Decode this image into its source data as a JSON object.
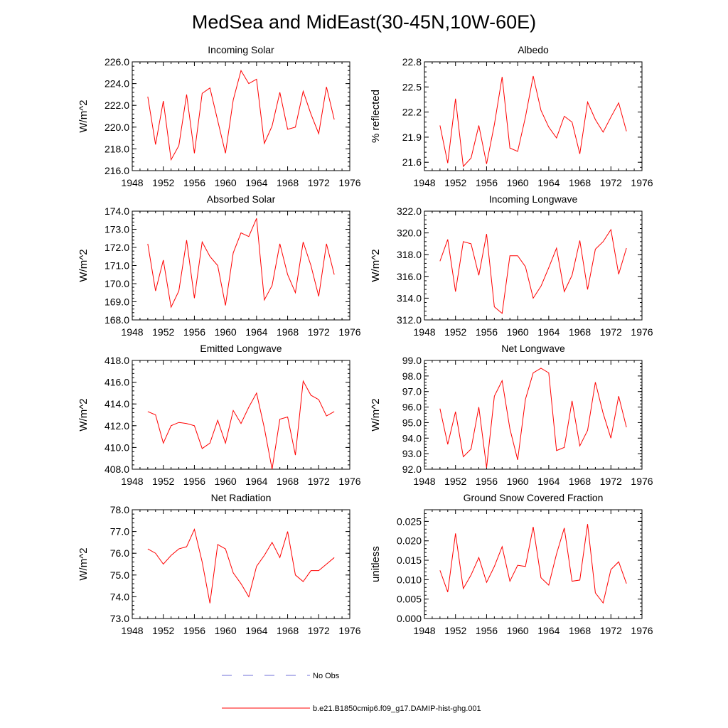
{
  "figure": {
    "title": "MedSea and MidEast(30-45N,10W-60E)"
  },
  "colors": {
    "series": "#ff0000",
    "no_obs": "#6f6fd8",
    "axes": "#000000"
  },
  "legend": {
    "items": [
      {
        "label": "No Obs",
        "style": "dashed",
        "color": "#6f6fd8"
      },
      {
        "label": "b.e21.B1850cmip6.f09_g17.DAMIP-hist-ghg.001",
        "style": "solid",
        "color": "#ff0000"
      }
    ]
  },
  "chart_data": [
    {
      "type": "line",
      "title": "Incoming Solar",
      "ylabel": "W/m^2",
      "xlim": [
        1948,
        1976
      ],
      "ylim": [
        216,
        226
      ],
      "xticks": [
        "1948",
        "1952",
        "1956",
        "1960",
        "1964",
        "1968",
        "1972",
        "1976"
      ],
      "yticks": [
        "216.0",
        "218.0",
        "220.0",
        "222.0",
        "224.0",
        "226.0"
      ],
      "x": [
        1950,
        1951,
        1952,
        1953,
        1954,
        1955,
        1956,
        1957,
        1958,
        1959,
        1960,
        1961,
        1962,
        1963,
        1964,
        1965,
        1966,
        1967,
        1968,
        1969,
        1970,
        1971,
        1972,
        1973,
        1974
      ],
      "series": [
        {
          "name": "b.e21.B1850cmip6.f09_g17.DAMIP-hist-ghg.001",
          "values": [
            222.8,
            218.4,
            222.4,
            217.0,
            218.3,
            223.0,
            217.6,
            223.1,
            223.6,
            220.6,
            217.6,
            222.5,
            225.2,
            224.0,
            224.4,
            218.5,
            220.1,
            223.2,
            219.8,
            220.0,
            223.3,
            221.2,
            219.4,
            223.7,
            220.7
          ]
        }
      ]
    },
    {
      "type": "line",
      "title": "Albedo",
      "ylabel": "% reflected",
      "xlim": [
        1948,
        1976
      ],
      "ylim": [
        21.5,
        22.8
      ],
      "xticks": [
        "1948",
        "1952",
        "1956",
        "1960",
        "1964",
        "1968",
        "1972",
        "1976"
      ],
      "yticks": [
        "21.6",
        "21.9",
        "22.2",
        "22.5",
        "22.8"
      ],
      "x": [
        1950,
        1951,
        1952,
        1953,
        1954,
        1955,
        1956,
        1957,
        1958,
        1959,
        1960,
        1961,
        1962,
        1963,
        1964,
        1965,
        1966,
        1967,
        1968,
        1969,
        1970,
        1971,
        1972,
        1973,
        1974
      ],
      "series": [
        {
          "name": "b.e21.B1850cmip6.f09_g17.DAMIP-hist-ghg.001",
          "values": [
            22.04,
            21.59,
            22.36,
            21.55,
            21.65,
            22.04,
            21.58,
            22.05,
            22.62,
            21.77,
            21.73,
            22.14,
            22.63,
            22.22,
            22.02,
            21.89,
            22.15,
            22.08,
            21.7,
            22.32,
            22.11,
            21.96,
            22.14,
            22.31,
            21.97
          ]
        }
      ]
    },
    {
      "type": "line",
      "title": "Absorbed Solar",
      "ylabel": "W/m^2",
      "xlim": [
        1948,
        1976
      ],
      "ylim": [
        168,
        174
      ],
      "xticks": [
        "1948",
        "1952",
        "1956",
        "1960",
        "1964",
        "1968",
        "1972",
        "1976"
      ],
      "yticks": [
        "168.0",
        "169.0",
        "170.0",
        "171.0",
        "172.0",
        "173.0",
        "174.0"
      ],
      "x": [
        1950,
        1951,
        1952,
        1953,
        1954,
        1955,
        1956,
        1957,
        1958,
        1959,
        1960,
        1961,
        1962,
        1963,
        1964,
        1965,
        1966,
        1967,
        1968,
        1969,
        1970,
        1971,
        1972,
        1973,
        1974
      ],
      "series": [
        {
          "name": "b.e21.B1850cmip6.f09_g17.DAMIP-hist-ghg.001",
          "values": [
            172.2,
            169.6,
            171.3,
            168.7,
            169.6,
            172.4,
            169.2,
            172.3,
            171.5,
            171.0,
            168.8,
            171.7,
            172.8,
            172.6,
            173.6,
            169.1,
            169.9,
            172.2,
            170.5,
            169.5,
            172.3,
            171.0,
            169.3,
            172.2,
            170.5
          ]
        }
      ]
    },
    {
      "type": "line",
      "title": "Incoming Longwave",
      "ylabel": "W/m^2",
      "xlim": [
        1948,
        1976
      ],
      "ylim": [
        312,
        322
      ],
      "xticks": [
        "1948",
        "1952",
        "1956",
        "1960",
        "1964",
        "1968",
        "1972",
        "1976"
      ],
      "yticks": [
        "312.0",
        "314.0",
        "316.0",
        "318.0",
        "320.0",
        "322.0"
      ],
      "x": [
        1950,
        1951,
        1952,
        1953,
        1954,
        1955,
        1956,
        1957,
        1958,
        1959,
        1960,
        1961,
        1962,
        1963,
        1964,
        1965,
        1966,
        1967,
        1968,
        1969,
        1970,
        1971,
        1972,
        1973,
        1974
      ],
      "series": [
        {
          "name": "b.e21.B1850cmip6.f09_g17.DAMIP-hist-ghg.001",
          "values": [
            317.4,
            319.4,
            314.6,
            319.2,
            319.0,
            316.1,
            319.9,
            313.2,
            312.6,
            317.9,
            317.9,
            316.9,
            314.0,
            315.1,
            316.8,
            318.6,
            314.6,
            316.1,
            319.3,
            314.8,
            318.5,
            319.2,
            320.3,
            316.2,
            318.6
          ]
        }
      ]
    },
    {
      "type": "line",
      "title": "Emitted Longwave",
      "ylabel": "W/m^2",
      "xlim": [
        1948,
        1976
      ],
      "ylim": [
        408,
        418
      ],
      "xticks": [
        "1948",
        "1952",
        "1956",
        "1960",
        "1964",
        "1968",
        "1972",
        "1976"
      ],
      "yticks": [
        "408.0",
        "410.0",
        "412.0",
        "414.0",
        "416.0",
        "418.0"
      ],
      "x": [
        1950,
        1951,
        1952,
        1953,
        1954,
        1955,
        1956,
        1957,
        1958,
        1959,
        1960,
        1961,
        1962,
        1963,
        1964,
        1965,
        1966,
        1967,
        1968,
        1969,
        1970,
        1971,
        1972,
        1973,
        1974
      ],
      "series": [
        {
          "name": "b.e21.B1850cmip6.f09_g17.DAMIP-hist-ghg.001",
          "values": [
            413.3,
            413.0,
            410.4,
            412.0,
            412.3,
            412.2,
            412.0,
            409.9,
            410.4,
            412.5,
            410.4,
            413.4,
            412.2,
            413.7,
            415.0,
            411.8,
            408.0,
            412.6,
            412.8,
            409.3,
            416.1,
            414.8,
            414.4,
            412.9,
            413.3
          ]
        }
      ]
    },
    {
      "type": "line",
      "title": "Net Longwave",
      "ylabel": "W/m^2",
      "xlim": [
        1948,
        1976
      ],
      "ylim": [
        92,
        99
      ],
      "xticks": [
        "1948",
        "1952",
        "1956",
        "1960",
        "1964",
        "1968",
        "1972",
        "1976"
      ],
      "yticks": [
        "92.0",
        "93.0",
        "94.0",
        "95.0",
        "96.0",
        "97.0",
        "98.0",
        "99.0"
      ],
      "x": [
        1950,
        1951,
        1952,
        1953,
        1954,
        1955,
        1956,
        1957,
        1958,
        1959,
        1960,
        1961,
        1962,
        1963,
        1964,
        1965,
        1966,
        1967,
        1968,
        1969,
        1970,
        1971,
        1972,
        1973,
        1974
      ],
      "series": [
        {
          "name": "b.e21.B1850cmip6.f09_g17.DAMIP-hist-ghg.001",
          "values": [
            95.9,
            93.6,
            95.7,
            92.8,
            93.3,
            96.0,
            92.1,
            96.7,
            97.7,
            94.6,
            92.6,
            96.5,
            98.2,
            98.5,
            98.2,
            93.2,
            93.4,
            96.4,
            93.5,
            94.5,
            97.6,
            95.6,
            94.0,
            96.7,
            94.7
          ]
        }
      ]
    },
    {
      "type": "line",
      "title": "Net Radiation",
      "ylabel": "W/m^2",
      "xlim": [
        1948,
        1976
      ],
      "ylim": [
        73,
        78
      ],
      "xticks": [
        "1948",
        "1952",
        "1956",
        "1960",
        "1964",
        "1968",
        "1972",
        "1976"
      ],
      "yticks": [
        "73.0",
        "74.0",
        "75.0",
        "76.0",
        "77.0",
        "78.0"
      ],
      "x": [
        1950,
        1951,
        1952,
        1953,
        1954,
        1955,
        1956,
        1957,
        1958,
        1959,
        1960,
        1961,
        1962,
        1963,
        1964,
        1965,
        1966,
        1967,
        1968,
        1969,
        1970,
        1971,
        1972,
        1973,
        1974
      ],
      "series": [
        {
          "name": "b.e21.B1850cmip6.f09_g17.DAMIP-hist-ghg.001",
          "values": [
            76.2,
            76.0,
            75.5,
            75.9,
            76.2,
            76.3,
            77.1,
            75.6,
            73.7,
            76.4,
            76.2,
            75.1,
            74.6,
            74.0,
            75.4,
            75.9,
            76.5,
            75.8,
            77.0,
            75.0,
            74.7,
            75.2,
            75.2,
            75.5,
            75.8
          ]
        }
      ]
    },
    {
      "type": "line",
      "title": "Ground Snow Covered Fraction",
      "ylabel": "unitless",
      "xlim": [
        1948,
        1976
      ],
      "ylim": [
        0,
        0.028
      ],
      "xticks": [
        "1948",
        "1952",
        "1956",
        "1960",
        "1964",
        "1968",
        "1972",
        "1976"
      ],
      "yticks": [
        "0.000",
        "0.005",
        "0.010",
        "0.015",
        "0.020",
        "0.025"
      ],
      "x": [
        1950,
        1951,
        1952,
        1953,
        1954,
        1955,
        1956,
        1957,
        1958,
        1959,
        1960,
        1961,
        1962,
        1963,
        1964,
        1965,
        1966,
        1967,
        1968,
        1969,
        1970,
        1971,
        1972,
        1973,
        1974
      ],
      "series": [
        {
          "name": "b.e21.B1850cmip6.f09_g17.DAMIP-hist-ghg.001",
          "values": [
            0.0124,
            0.0068,
            0.0219,
            0.0077,
            0.0112,
            0.0157,
            0.0093,
            0.0134,
            0.0185,
            0.0096,
            0.0137,
            0.0134,
            0.0236,
            0.0105,
            0.0086,
            0.0166,
            0.0233,
            0.0096,
            0.0099,
            0.0243,
            0.0066,
            0.004,
            0.0126,
            0.0146,
            0.009
          ]
        }
      ]
    }
  ]
}
